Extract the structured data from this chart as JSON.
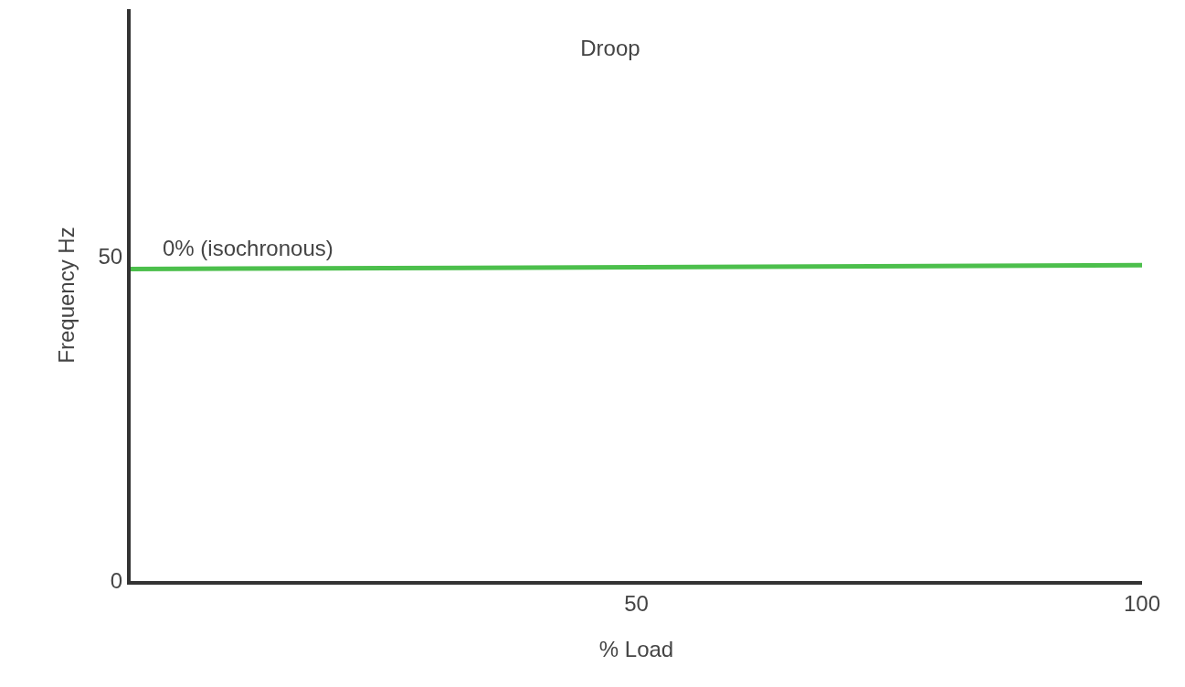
{
  "chart_data": {
    "type": "line",
    "title": "Droop",
    "xlabel": "% Load",
    "ylabel": "Frequency Hz",
    "x": [
      0,
      100
    ],
    "series": [
      {
        "color": "#4cbf4c",
        "values": [
          48,
          48.6
        ]
      }
    ],
    "annotations": [
      {
        "text": "0% (isochronous)",
        "x": 3,
        "y": 48
      }
    ],
    "xlim": [
      0,
      100
    ],
    "xticks": [
      50,
      100
    ],
    "ylim": [
      0,
      88
    ],
    "yticks": [
      0,
      50
    ],
    "marker": "none",
    "line_style": "solid"
  }
}
